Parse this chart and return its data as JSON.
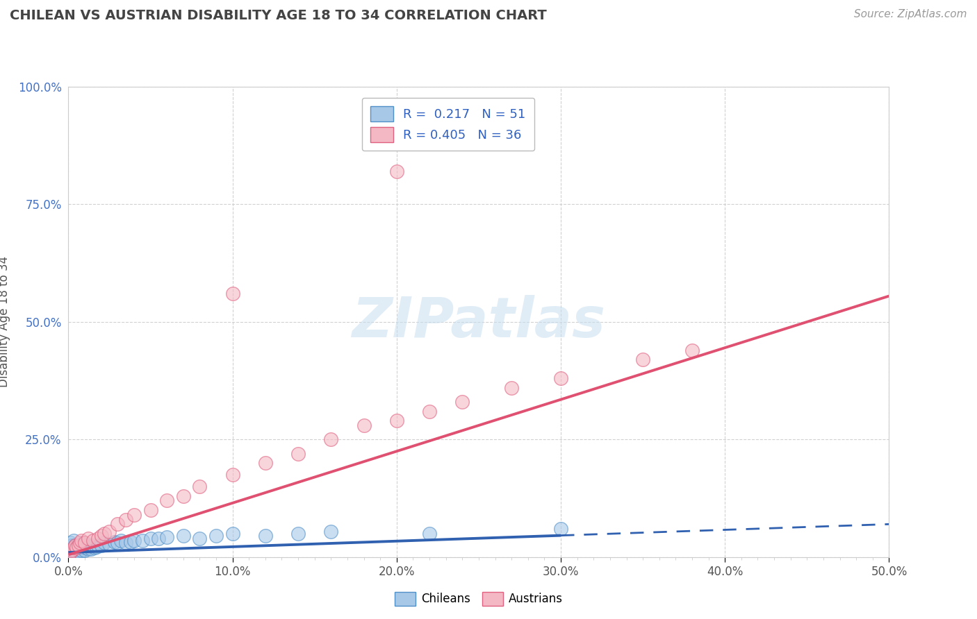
{
  "title": "CHILEAN VS AUSTRIAN DISABILITY AGE 18 TO 34 CORRELATION CHART",
  "source_text": "Source: ZipAtlas.com",
  "ylabel": "Disability Age 18 to 34",
  "xlim": [
    0.0,
    0.5
  ],
  "ylim": [
    0.0,
    1.0
  ],
  "xtick_labels": [
    "0.0%",
    "",
    "",
    "",
    "",
    "",
    "",
    "",
    "",
    "",
    "10.0%",
    "",
    "",
    "",
    "",
    "",
    "",
    "",
    "",
    "",
    "20.0%",
    "",
    "",
    "",
    "",
    "",
    "",
    "",
    "",
    "",
    "30.0%",
    "",
    "",
    "",
    "",
    "",
    "",
    "",
    "",
    "",
    "40.0%",
    "",
    "",
    "",
    "",
    "",
    "",
    "",
    "",
    "",
    "50.0%"
  ],
  "xtick_values": [
    0.0,
    0.01,
    0.02,
    0.03,
    0.04,
    0.05,
    0.06,
    0.07,
    0.08,
    0.09,
    0.1,
    0.11,
    0.12,
    0.13,
    0.14,
    0.15,
    0.16,
    0.17,
    0.18,
    0.19,
    0.2,
    0.21,
    0.22,
    0.23,
    0.24,
    0.25,
    0.26,
    0.27,
    0.28,
    0.29,
    0.3,
    0.31,
    0.32,
    0.33,
    0.34,
    0.35,
    0.36,
    0.37,
    0.38,
    0.39,
    0.4,
    0.41,
    0.42,
    0.43,
    0.44,
    0.45,
    0.46,
    0.47,
    0.48,
    0.49,
    0.5
  ],
  "ytick_labels": [
    "0.0%",
    "25.0%",
    "50.0%",
    "75.0%",
    "100.0%"
  ],
  "ytick_values": [
    0.0,
    0.25,
    0.5,
    0.75,
    1.0
  ],
  "chilean_color": "#a8c8e8",
  "austrian_color": "#f4b8c4",
  "chilean_edge_color": "#5090c8",
  "austrian_edge_color": "#e06080",
  "chilean_line_color": "#3060b0",
  "austrian_line_color": "#e05070",
  "R_chilean": "0.217",
  "N_chilean": "51",
  "R_austrian": "0.405",
  "N_austrian": "36",
  "legend_label_color": "#3060c0",
  "watermark_color": "#c8dff0",
  "chilean_x": [
    0.001,
    0.001,
    0.002,
    0.002,
    0.003,
    0.003,
    0.003,
    0.004,
    0.004,
    0.005,
    0.005,
    0.006,
    0.006,
    0.007,
    0.007,
    0.008,
    0.008,
    0.009,
    0.009,
    0.01,
    0.01,
    0.011,
    0.012,
    0.013,
    0.014,
    0.015,
    0.016,
    0.017,
    0.018,
    0.02,
    0.022,
    0.025,
    0.028,
    0.03,
    0.032,
    0.035,
    0.038,
    0.04,
    0.045,
    0.05,
    0.055,
    0.06,
    0.07,
    0.08,
    0.09,
    0.1,
    0.12,
    0.14,
    0.16,
    0.22,
    0.3
  ],
  "chilean_y": [
    0.02,
    0.03,
    0.015,
    0.025,
    0.01,
    0.02,
    0.035,
    0.015,
    0.025,
    0.01,
    0.02,
    0.015,
    0.025,
    0.01,
    0.02,
    0.015,
    0.025,
    0.02,
    0.03,
    0.015,
    0.025,
    0.02,
    0.018,
    0.022,
    0.018,
    0.025,
    0.02,
    0.022,
    0.025,
    0.025,
    0.03,
    0.028,
    0.032,
    0.03,
    0.035,
    0.03,
    0.032,
    0.035,
    0.035,
    0.04,
    0.04,
    0.042,
    0.045,
    0.04,
    0.045,
    0.05,
    0.045,
    0.05,
    0.055,
    0.05,
    0.06
  ],
  "austrian_x": [
    0.001,
    0.002,
    0.003,
    0.004,
    0.005,
    0.006,
    0.007,
    0.008,
    0.01,
    0.012,
    0.015,
    0.018,
    0.02,
    0.022,
    0.025,
    0.03,
    0.035,
    0.04,
    0.05,
    0.06,
    0.07,
    0.08,
    0.1,
    0.12,
    0.14,
    0.16,
    0.18,
    0.2,
    0.22,
    0.24,
    0.27,
    0.3,
    0.35,
    0.38,
    0.2,
    0.1
  ],
  "austrian_y": [
    0.01,
    0.015,
    0.02,
    0.025,
    0.02,
    0.025,
    0.03,
    0.035,
    0.03,
    0.04,
    0.035,
    0.04,
    0.045,
    0.05,
    0.055,
    0.07,
    0.08,
    0.09,
    0.1,
    0.12,
    0.13,
    0.15,
    0.175,
    0.2,
    0.22,
    0.25,
    0.28,
    0.29,
    0.31,
    0.33,
    0.36,
    0.38,
    0.42,
    0.44,
    0.82,
    0.56
  ],
  "ch_line_x0": 0.0,
  "ch_line_x1": 0.3,
  "ch_line_x2": 0.5,
  "ch_line_y0": 0.01,
  "ch_line_slope": 0.12,
  "au_line_x0": 0.0,
  "au_line_x1": 0.5,
  "au_line_y0": 0.005,
  "au_line_slope": 1.1
}
